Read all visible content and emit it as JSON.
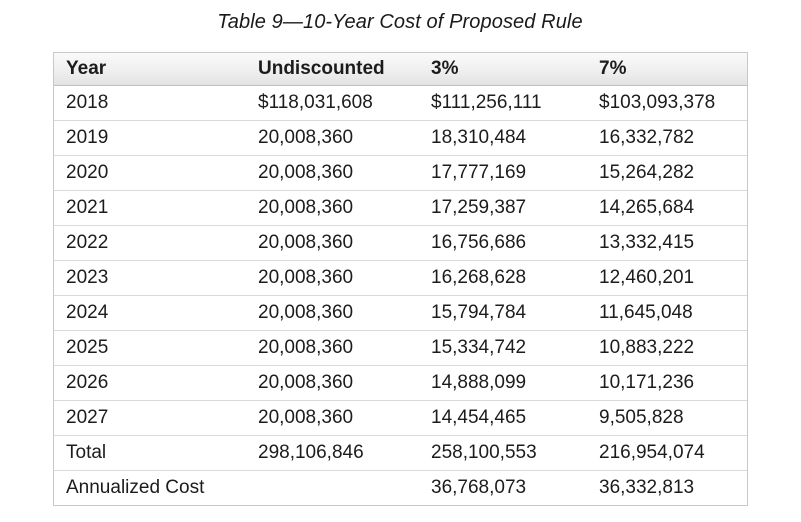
{
  "title": "Table 9—10-Year Cost of Proposed Rule",
  "table": {
    "columns": [
      "Year",
      "Undiscounted",
      "3%",
      "7%"
    ],
    "rows": [
      {
        "year": "2018",
        "undiscounted": "$118,031,608",
        "pct3": "$111,256,111",
        "pct7": "$103,093,378"
      },
      {
        "year": "2019",
        "undiscounted": "20,008,360",
        "pct3": "18,310,484",
        "pct7": "16,332,782"
      },
      {
        "year": "2020",
        "undiscounted": "20,008,360",
        "pct3": "17,777,169",
        "pct7": "15,264,282"
      },
      {
        "year": "2021",
        "undiscounted": "20,008,360",
        "pct3": "17,259,387",
        "pct7": "14,265,684"
      },
      {
        "year": "2022",
        "undiscounted": "20,008,360",
        "pct3": "16,756,686",
        "pct7": "13,332,415"
      },
      {
        "year": "2023",
        "undiscounted": "20,008,360",
        "pct3": "16,268,628",
        "pct7": "12,460,201"
      },
      {
        "year": "2024",
        "undiscounted": "20,008,360",
        "pct3": "15,794,784",
        "pct7": "11,645,048"
      },
      {
        "year": "2025",
        "undiscounted": "20,008,360",
        "pct3": "15,334,742",
        "pct7": "10,883,222"
      },
      {
        "year": "2026",
        "undiscounted": "20,008,360",
        "pct3": "14,888,099",
        "pct7": "10,171,236"
      },
      {
        "year": "2027",
        "undiscounted": "20,008,360",
        "pct3": "14,454,465",
        "pct7": "9,505,828"
      },
      {
        "year": "Total",
        "undiscounted": "298,106,846",
        "pct3": "258,100,553",
        "pct7": "216,954,074"
      },
      {
        "year": "Annualized Cost",
        "undiscounted": "",
        "pct3": "36,768,073",
        "pct7": "36,332,813"
      }
    ]
  },
  "colors": {
    "header_gradient_top": "#fafafa",
    "header_gradient_bottom": "#e3e3e3",
    "outer_border": "#c8c8c8",
    "row_separator": "#d9d9d9",
    "text": "#1c1c1c",
    "background": "#ffffff"
  }
}
